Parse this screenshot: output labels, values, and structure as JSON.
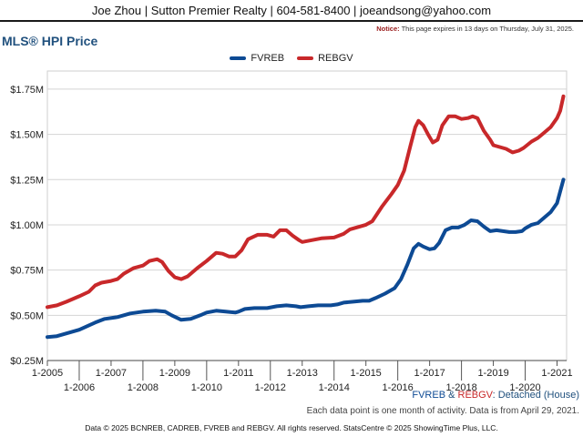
{
  "header": {
    "contact": "Joe Zhou | Sutton Premier Realty | 604-581-8400 | joeandsong@yahoo.com",
    "notice_label": "Notice:",
    "notice_text": " This page expires in 13 days on Thursday, July 31, 2025."
  },
  "subtitle": {
    "fvreb": "FVREB",
    "amp": " & ",
    "rebgv": "REBGV",
    "type": ": Detached (House)"
  },
  "note": "Each data point is one month of activity. Data is from April 29, 2021.",
  "footer": "Data © 2025 BCNREB, CADREB, FVREB and REBGV. All rights reserved. StatsCentre © 2025 ShowingTime Plus, LLC.",
  "chart_data": {
    "type": "line",
    "title": "MLS® HPI Price",
    "legend_position": "top-center",
    "grid": true,
    "xlim": [
      2005.0,
      2021.3
    ],
    "ylim": [
      0.25,
      1.85
    ],
    "y_ticks": [
      {
        "value": 0.25,
        "label": "$0.25M"
      },
      {
        "value": 0.5,
        "label": "$0.50M"
      },
      {
        "value": 0.75,
        "label": "$0.75M"
      },
      {
        "value": 1.0,
        "label": "$1.00M"
      },
      {
        "value": 1.25,
        "label": "$1.25M"
      },
      {
        "value": 1.5,
        "label": "$1.50M"
      },
      {
        "value": 1.75,
        "label": "$1.75M"
      }
    ],
    "x_ticks": [
      {
        "value": 2005,
        "label": "1-2005"
      },
      {
        "value": 2006,
        "label": "1-2006"
      },
      {
        "value": 2007,
        "label": "1-2007"
      },
      {
        "value": 2008,
        "label": "1-2008"
      },
      {
        "value": 2009,
        "label": "1-2009"
      },
      {
        "value": 2010,
        "label": "1-2010"
      },
      {
        "value": 2011,
        "label": "1-2011"
      },
      {
        "value": 2012,
        "label": "1-2012"
      },
      {
        "value": 2013,
        "label": "1-2013"
      },
      {
        "value": 2014,
        "label": "1-2014"
      },
      {
        "value": 2015,
        "label": "1-2015"
      },
      {
        "value": 2016,
        "label": "1-2016"
      },
      {
        "value": 2017,
        "label": "1-2017"
      },
      {
        "value": 2018,
        "label": "1-2018"
      },
      {
        "value": 2019,
        "label": "1-2019"
      },
      {
        "value": 2020,
        "label": "1-2020"
      },
      {
        "value": 2021,
        "label": "1-2021"
      }
    ],
    "series": [
      {
        "name": "FVREB",
        "color": "#0d4a94",
        "points": [
          [
            2005.0,
            0.38
          ],
          [
            2005.3,
            0.385
          ],
          [
            2005.6,
            0.4
          ],
          [
            2006.0,
            0.42
          ],
          [
            2006.5,
            0.46
          ],
          [
            2006.8,
            0.48
          ],
          [
            2007.2,
            0.49
          ],
          [
            2007.6,
            0.51
          ],
          [
            2008.0,
            0.52
          ],
          [
            2008.4,
            0.525
          ],
          [
            2008.7,
            0.52
          ],
          [
            2008.9,
            0.5
          ],
          [
            2009.2,
            0.475
          ],
          [
            2009.5,
            0.48
          ],
          [
            2009.8,
            0.5
          ],
          [
            2010.0,
            0.515
          ],
          [
            2010.3,
            0.525
          ],
          [
            2010.6,
            0.52
          ],
          [
            2010.9,
            0.515
          ],
          [
            2011.0,
            0.52
          ],
          [
            2011.2,
            0.535
          ],
          [
            2011.5,
            0.54
          ],
          [
            2011.9,
            0.54
          ],
          [
            2012.2,
            0.55
          ],
          [
            2012.5,
            0.555
          ],
          [
            2012.8,
            0.55
          ],
          [
            2012.95,
            0.545
          ],
          [
            2013.2,
            0.55
          ],
          [
            2013.5,
            0.555
          ],
          [
            2013.9,
            0.555
          ],
          [
            2014.1,
            0.56
          ],
          [
            2014.3,
            0.57
          ],
          [
            2014.6,
            0.575
          ],
          [
            2014.9,
            0.58
          ],
          [
            2015.1,
            0.58
          ],
          [
            2015.3,
            0.595
          ],
          [
            2015.6,
            0.62
          ],
          [
            2015.9,
            0.65
          ],
          [
            2016.1,
            0.7
          ],
          [
            2016.3,
            0.78
          ],
          [
            2016.5,
            0.87
          ],
          [
            2016.65,
            0.895
          ],
          [
            2016.8,
            0.88
          ],
          [
            2017.0,
            0.865
          ],
          [
            2017.15,
            0.87
          ],
          [
            2017.3,
            0.9
          ],
          [
            2017.5,
            0.97
          ],
          [
            2017.7,
            0.985
          ],
          [
            2017.9,
            0.985
          ],
          [
            2018.1,
            1.0
          ],
          [
            2018.3,
            1.025
          ],
          [
            2018.5,
            1.02
          ],
          [
            2018.7,
            0.99
          ],
          [
            2018.9,
            0.965
          ],
          [
            2019.1,
            0.97
          ],
          [
            2019.3,
            0.965
          ],
          [
            2019.5,
            0.96
          ],
          [
            2019.7,
            0.96
          ],
          [
            2019.9,
            0.965
          ],
          [
            2020.0,
            0.98
          ],
          [
            2020.2,
            1.0
          ],
          [
            2020.4,
            1.01
          ],
          [
            2020.6,
            1.04
          ],
          [
            2020.8,
            1.07
          ],
          [
            2021.0,
            1.12
          ],
          [
            2021.2,
            1.25
          ]
        ]
      },
      {
        "name": "REBGV",
        "color": "#c8282a",
        "points": [
          [
            2005.0,
            0.545
          ],
          [
            2005.3,
            0.555
          ],
          [
            2005.6,
            0.575
          ],
          [
            2006.0,
            0.605
          ],
          [
            2006.3,
            0.63
          ],
          [
            2006.5,
            0.665
          ],
          [
            2006.7,
            0.68
          ],
          [
            2007.0,
            0.69
          ],
          [
            2007.2,
            0.7
          ],
          [
            2007.4,
            0.73
          ],
          [
            2007.7,
            0.76
          ],
          [
            2008.0,
            0.775
          ],
          [
            2008.2,
            0.8
          ],
          [
            2008.45,
            0.81
          ],
          [
            2008.6,
            0.795
          ],
          [
            2008.8,
            0.745
          ],
          [
            2009.0,
            0.71
          ],
          [
            2009.2,
            0.7
          ],
          [
            2009.4,
            0.715
          ],
          [
            2009.7,
            0.76
          ],
          [
            2010.0,
            0.8
          ],
          [
            2010.3,
            0.845
          ],
          [
            2010.5,
            0.84
          ],
          [
            2010.7,
            0.825
          ],
          [
            2010.9,
            0.825
          ],
          [
            2011.1,
            0.86
          ],
          [
            2011.3,
            0.92
          ],
          [
            2011.6,
            0.945
          ],
          [
            2011.9,
            0.945
          ],
          [
            2012.1,
            0.935
          ],
          [
            2012.3,
            0.97
          ],
          [
            2012.5,
            0.97
          ],
          [
            2012.7,
            0.94
          ],
          [
            2012.9,
            0.915
          ],
          [
            2013.0,
            0.905
          ],
          [
            2013.3,
            0.915
          ],
          [
            2013.6,
            0.925
          ],
          [
            2014.0,
            0.93
          ],
          [
            2014.3,
            0.95
          ],
          [
            2014.5,
            0.975
          ],
          [
            2014.8,
            0.99
          ],
          [
            2015.0,
            1.0
          ],
          [
            2015.2,
            1.02
          ],
          [
            2015.5,
            1.1
          ],
          [
            2015.8,
            1.17
          ],
          [
            2016.0,
            1.22
          ],
          [
            2016.2,
            1.3
          ],
          [
            2016.4,
            1.44
          ],
          [
            2016.55,
            1.54
          ],
          [
            2016.65,
            1.575
          ],
          [
            2016.8,
            1.55
          ],
          [
            2016.95,
            1.5
          ],
          [
            2017.1,
            1.455
          ],
          [
            2017.25,
            1.47
          ],
          [
            2017.4,
            1.55
          ],
          [
            2017.6,
            1.6
          ],
          [
            2017.8,
            1.6
          ],
          [
            2018.0,
            1.585
          ],
          [
            2018.2,
            1.59
          ],
          [
            2018.35,
            1.6
          ],
          [
            2018.5,
            1.59
          ],
          [
            2018.7,
            1.52
          ],
          [
            2018.9,
            1.47
          ],
          [
            2019.0,
            1.44
          ],
          [
            2019.2,
            1.43
          ],
          [
            2019.4,
            1.42
          ],
          [
            2019.6,
            1.4
          ],
          [
            2019.8,
            1.41
          ],
          [
            2019.95,
            1.425
          ],
          [
            2020.2,
            1.46
          ],
          [
            2020.4,
            1.48
          ],
          [
            2020.6,
            1.51
          ],
          [
            2020.8,
            1.54
          ],
          [
            2021.0,
            1.59
          ],
          [
            2021.1,
            1.63
          ],
          [
            2021.2,
            1.71
          ]
        ]
      }
    ]
  }
}
